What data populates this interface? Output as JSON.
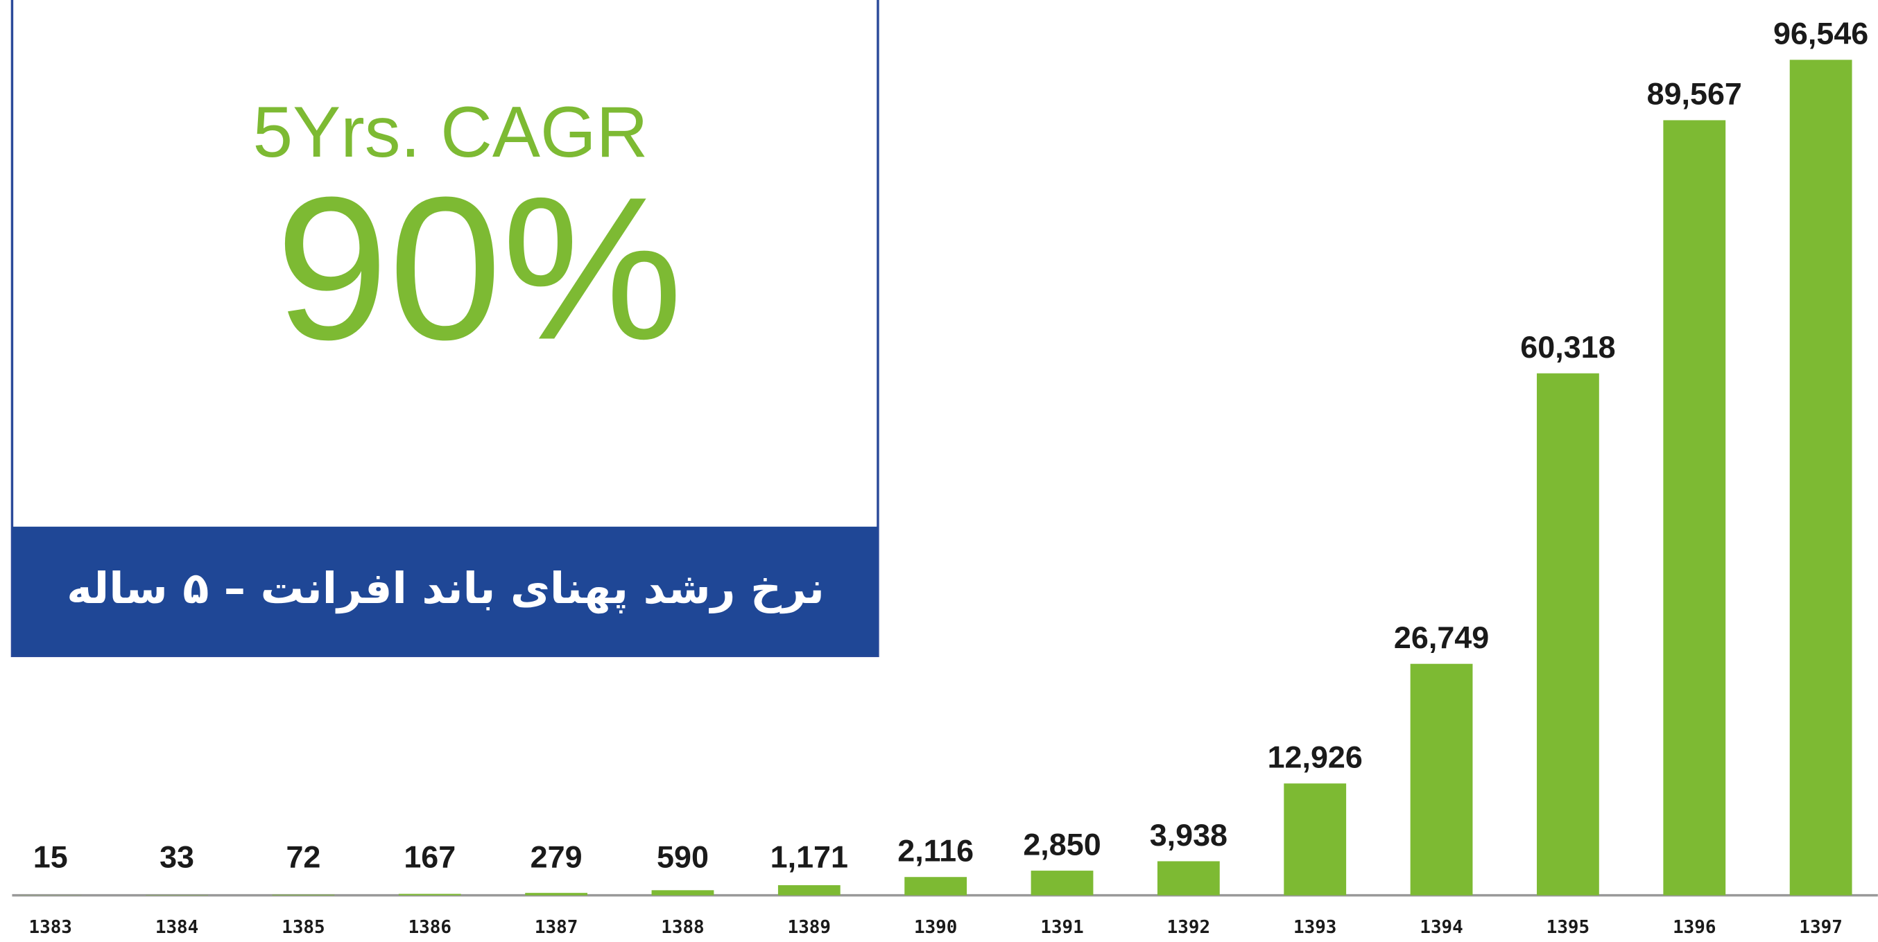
{
  "chart_data": {
    "type": "bar",
    "categories": [
      "1383",
      "1384",
      "1385",
      "1386",
      "1387",
      "1388",
      "1389",
      "1390",
      "1391",
      "1392",
      "1393",
      "1394",
      "1395",
      "1396",
      "1397"
    ],
    "values": [
      15,
      33,
      72,
      167,
      279,
      590,
      1171,
      2116,
      2850,
      3938,
      12926,
      26749,
      60318,
      89567,
      96546
    ],
    "value_labels": [
      "15",
      "33",
      "72",
      "167",
      "279",
      "590",
      "1,171",
      "2,116",
      "2,850",
      "3,938",
      "12,926",
      "26,749",
      "60,318",
      "89,567",
      "96,546"
    ],
    "color": "#7dba33",
    "ylim": [
      0,
      100000
    ],
    "annotation": {
      "title": "5Yrs. CAGR",
      "value_text": "90%",
      "caption": "نرخ رشد پهنای باند افرانت – ۵ ساله"
    }
  }
}
